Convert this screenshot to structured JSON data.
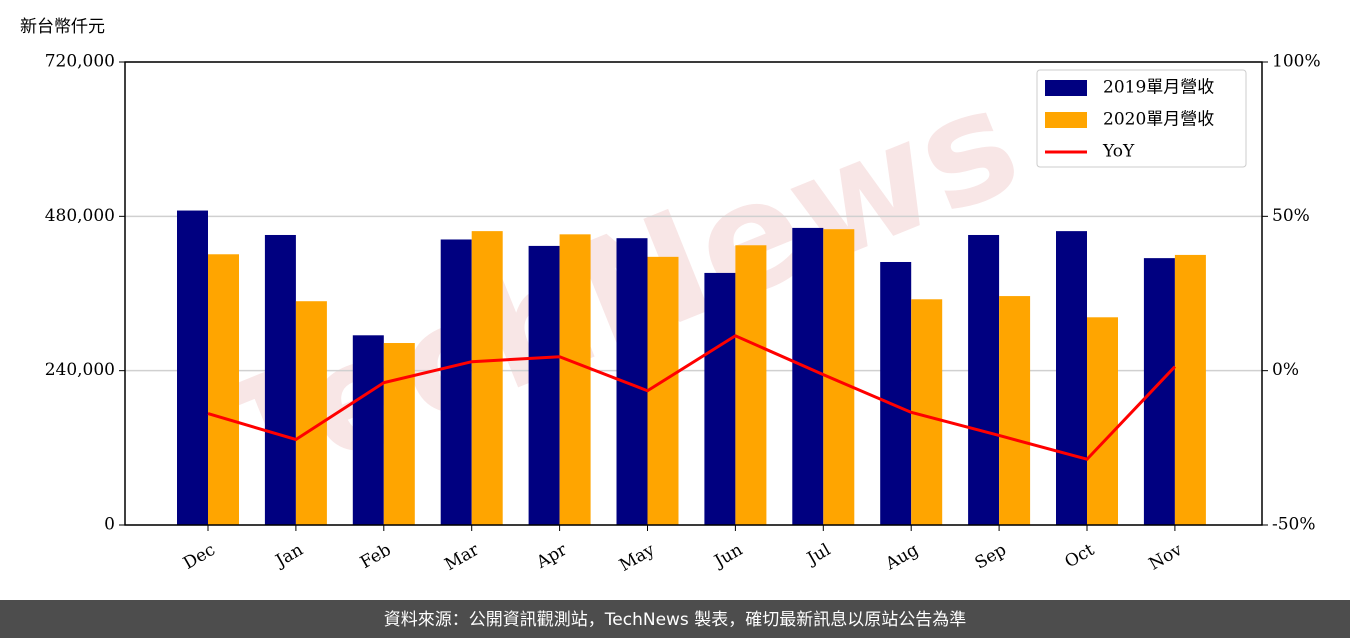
{
  "chart_data": {
    "type": "bar",
    "y_axis_label": "新台幣仟元",
    "categories": [
      "Dec",
      "Jan",
      "Feb",
      "Mar",
      "Apr",
      "May",
      "Jun",
      "Jul",
      "Aug",
      "Sep",
      "Oct",
      "Nov"
    ],
    "series": [
      {
        "name": "2019單月營收",
        "color": "#000080",
        "values": [
          489000,
          451000,
          295000,
          444000,
          434000,
          446000,
          392000,
          462000,
          409000,
          451000,
          457000,
          415000
        ]
      },
      {
        "name": "2020單月營收",
        "color": "#ffa500",
        "values": [
          421000,
          348000,
          283000,
          457000,
          452000,
          417000,
          435000,
          460000,
          351000,
          356000,
          323000,
          420000
        ]
      },
      {
        "name": "YoY",
        "type": "line",
        "axis": "y2",
        "color": "#ff0000",
        "values": [
          -13.9,
          -22.3,
          -3.9,
          2.9,
          4.5,
          -6.5,
          11.3,
          -1.3,
          -13.5,
          -21,
          -28.7,
          1.3
        ]
      }
    ],
    "ylim": [
      0,
      720000
    ],
    "yticks": [
      0,
      {
        "value": 240000,
        "label": "240,000"
      },
      {
        "value": 480000,
        "label": "480,000"
      },
      {
        "value": 720000,
        "label": "720,000"
      }
    ],
    "y2lim": [
      -50,
      100
    ],
    "y2ticks": [
      {
        "value": -50,
        "label": "-50%"
      },
      {
        "value": 0,
        "label": "0%"
      },
      {
        "value": 50,
        "label": "50%"
      },
      {
        "value": 100,
        "label": "100%"
      }
    ],
    "grid": true,
    "legend": "upper right",
    "watermark": "TechNews",
    "footer": "資料來源：公開資訊觀測站，TechNews 製表，確切最新訊息以原站公告為準"
  }
}
